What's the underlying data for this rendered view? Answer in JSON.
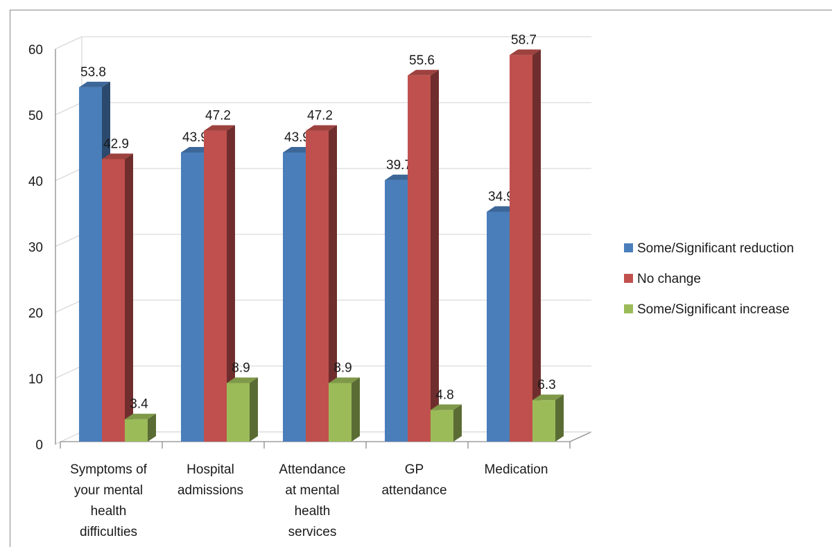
{
  "chart_data": {
    "type": "bar",
    "title": "",
    "xlabel": "",
    "ylabel": "",
    "ylim": [
      0,
      60
    ],
    "yticks": [
      0,
      10,
      20,
      30,
      40,
      50,
      60
    ],
    "grid": true,
    "legend_position": "right",
    "categories": [
      "Symptoms of your mental health difficulties",
      "Hospital admissions",
      "Attendance at mental health services",
      "GP attendance",
      "Medication"
    ],
    "category_lines": [
      [
        "Symptoms of",
        "your mental",
        "health",
        "difficulties"
      ],
      [
        "Hospital",
        "admissions"
      ],
      [
        "Attendance",
        "at mental",
        "health",
        "services"
      ],
      [
        "GP",
        "attendance"
      ],
      [
        "Medication"
      ]
    ],
    "series": [
      {
        "name": "Some/Significant reduction",
        "color": "#4a7ebb",
        "values": [
          53.8,
          43.9,
          43.9,
          39.7,
          34.9
        ]
      },
      {
        "name": "No change",
        "color": "#c0504d",
        "values": [
          42.9,
          47.2,
          47.2,
          55.6,
          58.7
        ]
      },
      {
        "name": "Some/Significant increase",
        "color": "#9bbb59",
        "values": [
          3.4,
          8.9,
          8.9,
          4.8,
          6.3
        ]
      }
    ]
  }
}
